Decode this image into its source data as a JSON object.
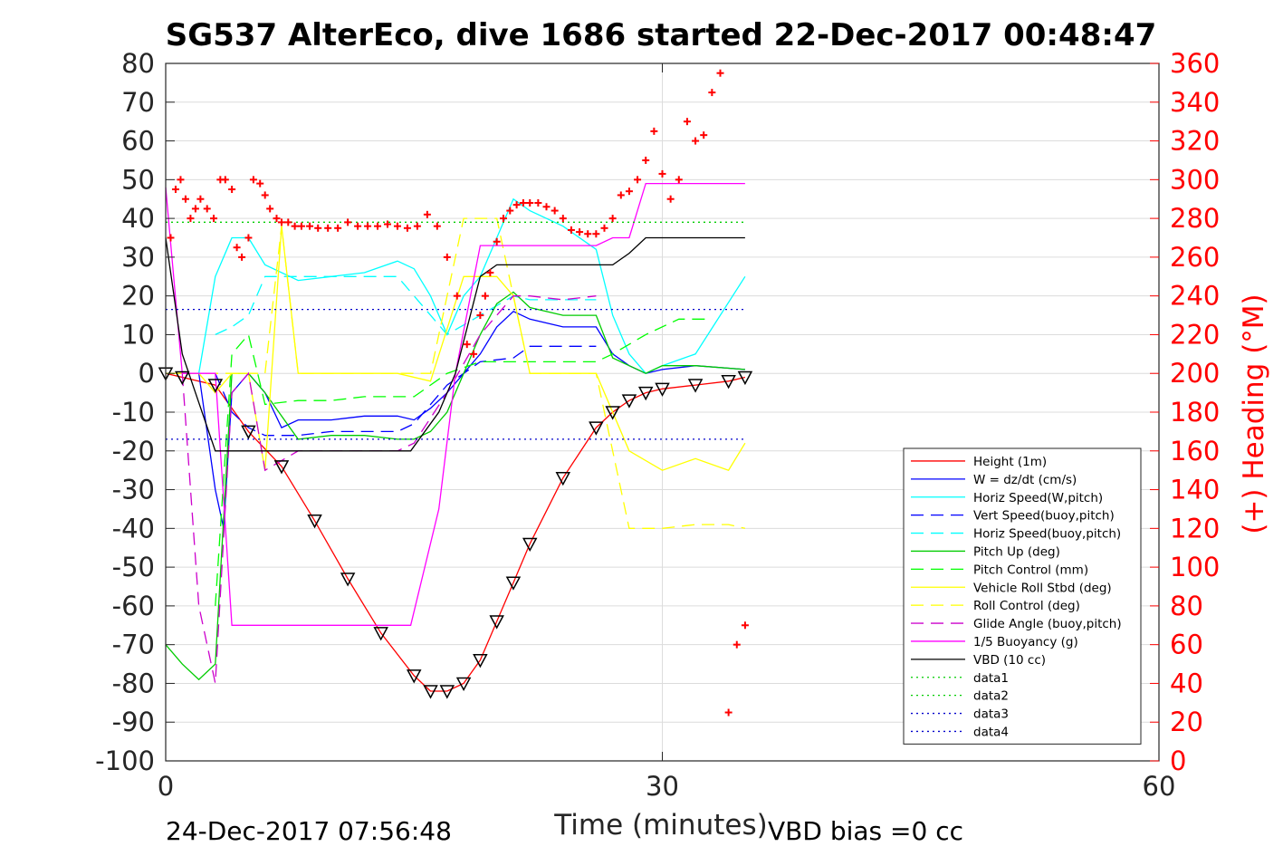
{
  "chart_data": {
    "type": "line",
    "title": "SG537 AlterEco, dive 1686 started 22-Dec-2017 00:48:47",
    "xlabel": "Time (minutes)",
    "ylabel_right": "(+) Heading (°M)",
    "xlim": [
      0,
      60
    ],
    "ylim": [
      -100,
      80
    ],
    "ylim_right": [
      0,
      360
    ],
    "x_ticks": [
      "0",
      "30",
      "60"
    ],
    "y_ticks": [
      "80",
      "70",
      "60",
      "50",
      "40",
      "30",
      "20",
      "10",
      "0",
      "-10",
      "-20",
      "-30",
      "-40",
      "-50",
      "-60",
      "-70",
      "-80",
      "-90",
      "-100"
    ],
    "y_right_ticks": [
      "360",
      "340",
      "320",
      "300",
      "280",
      "260",
      "240",
      "220",
      "200",
      "180",
      "160",
      "140",
      "120",
      "100",
      "80",
      "60",
      "40",
      "20",
      "0"
    ],
    "grid": true,
    "legend_position": "lower-right",
    "footer_left": "24-Dec-2017 07:56:48",
    "footer_right": "VBD bias =0 cc",
    "series": [
      {
        "name": "Height (1m)",
        "color": "#ff0000",
        "style": "solid",
        "x": [
          0,
          1,
          3,
          5,
          7,
          9,
          11,
          13,
          15,
          16,
          17,
          18,
          19,
          20,
          21,
          22,
          24,
          26,
          27,
          28,
          29,
          30,
          32,
          34,
          35
        ],
        "y": [
          0,
          -1,
          -3,
          -15,
          -24,
          -38,
          -53,
          -67,
          -78,
          -82,
          -82,
          -80,
          -74,
          -64,
          -54,
          -44,
          -27,
          -14,
          -10,
          -7,
          -5,
          -4,
          -3,
          -2,
          -1
        ]
      },
      {
        "name": "W = dz/dt (cm/s)",
        "color": "#0000ff",
        "style": "solid",
        "x": [
          0,
          2,
          3,
          3.5,
          4,
          5,
          6,
          7,
          8,
          10,
          12,
          14,
          15,
          16,
          17,
          18,
          19,
          20,
          21,
          22,
          24,
          26,
          27,
          28,
          29,
          30,
          32,
          35
        ],
        "y": [
          0,
          0,
          -30,
          -40,
          -5,
          0,
          -5,
          -14,
          -12,
          -12,
          -11,
          -11,
          -12,
          -9,
          -5,
          0,
          5,
          12,
          16,
          14,
          12,
          12,
          5,
          2,
          0,
          1,
          2,
          1
        ]
      },
      {
        "name": "Horiz Speed(W,pitch)",
        "color": "#00ffff",
        "style": "solid",
        "x": [
          2,
          3,
          4,
          5,
          6,
          8,
          10,
          12,
          14,
          15,
          16,
          17,
          18,
          19,
          20,
          21,
          22,
          24,
          26,
          27,
          28,
          29,
          30,
          32,
          35
        ],
        "y": [
          0,
          25,
          35,
          35,
          28,
          24,
          25,
          26,
          29,
          27,
          20,
          10,
          20,
          25,
          35,
          45,
          42,
          38,
          32,
          15,
          5,
          0,
          2,
          5,
          25
        ]
      },
      {
        "name": "Vert Speed(buoy,pitch)",
        "color": "#0000ff",
        "style": "dashed",
        "x": [
          3,
          4,
          5,
          6,
          8,
          10,
          12,
          14,
          15,
          17,
          19,
          21,
          22,
          24,
          26
        ],
        "y": [
          0,
          -10,
          -14,
          -16,
          -16,
          -15,
          -15,
          -15,
          -13,
          -3,
          3,
          4,
          7,
          7,
          7
        ]
      },
      {
        "name": "Horiz Speed(buoy,pitch)",
        "color": "#00ffff",
        "style": "dashed",
        "x": [
          3,
          4,
          5,
          6,
          8,
          10,
          12,
          14,
          15,
          17,
          19,
          21,
          22,
          24,
          26
        ],
        "y": [
          10,
          12,
          15,
          25,
          25,
          25,
          25,
          25,
          20,
          10,
          15,
          20,
          19,
          19,
          19
        ]
      },
      {
        "name": "Pitch Up (deg)",
        "color": "#00cc00",
        "style": "solid",
        "x": [
          0,
          1,
          2,
          3,
          4,
          5,
          6,
          8,
          10,
          12,
          14,
          15,
          16,
          17,
          18,
          19,
          20,
          21,
          22,
          24,
          26,
          27,
          28,
          29,
          30,
          32,
          35
        ],
        "y": [
          -70,
          -75,
          -79,
          -75,
          0,
          0,
          -5,
          -17,
          -16,
          -16,
          -17,
          -17,
          -15,
          -10,
          0,
          10,
          18,
          21,
          17,
          15,
          15,
          4,
          2,
          0,
          2,
          2,
          1
        ]
      },
      {
        "name": "Pitch Control (mm)",
        "color": "#00ff00",
        "style": "dashed",
        "x": [
          3,
          4,
          5,
          6,
          8,
          10,
          12,
          14,
          15,
          17,
          19,
          21,
          22,
          24,
          26,
          27,
          29,
          31,
          33
        ],
        "y": [
          -60,
          5,
          10,
          -8,
          -7,
          -7,
          -6,
          -6,
          -6,
          0,
          3,
          3,
          3,
          3,
          3,
          5,
          10,
          14,
          14
        ]
      },
      {
        "name": "Vehicle Roll Stbd (deg)",
        "color": "#ffff00",
        "style": "solid",
        "x": [
          0,
          2,
          3,
          4,
          5,
          6,
          7,
          8,
          10,
          12,
          14,
          16,
          18,
          20,
          21,
          22,
          24,
          26,
          28,
          30,
          32,
          34,
          35
        ],
        "y": [
          0,
          0,
          -5,
          0,
          0,
          -25,
          38,
          0,
          0,
          0,
          0,
          -2,
          25,
          25,
          20,
          0,
          0,
          0,
          -20,
          -25,
          -22,
          -25,
          -18
        ]
      },
      {
        "name": "Roll Control (deg)",
        "color": "#ffff00",
        "style": "dashed",
        "x": [
          0,
          2,
          3,
          4,
          5,
          6,
          7,
          8,
          10,
          12,
          14,
          16,
          18,
          20,
          22,
          24,
          26,
          28,
          30,
          32,
          34,
          35
        ],
        "y": [
          0,
          0,
          0,
          0,
          0,
          0,
          38,
          0,
          0,
          0,
          0,
          0,
          40,
          40,
          0,
          0,
          0,
          -40,
          -40,
          -39,
          -39,
          -40
        ]
      },
      {
        "name": "Glide Angle (buoy,pitch)",
        "color": "#cc00cc",
        "style": "dashed",
        "x": [
          1,
          2,
          3,
          4,
          5,
          6,
          8,
          10,
          12,
          14,
          15,
          17,
          19,
          21,
          22,
          24,
          26
        ],
        "y": [
          0,
          -60,
          -80,
          -5,
          0,
          -25,
          -20,
          -20,
          -20,
          -20,
          -18,
          -5,
          10,
          20,
          20,
          19,
          20
        ]
      },
      {
        "name": "1/5 Buoyancy (g)",
        "color": "#ff00ff",
        "style": "solid",
        "x": [
          0,
          1,
          3,
          4,
          10,
          14.8,
          16.5,
          17.5,
          19,
          20,
          24,
          26,
          27,
          28,
          29,
          30,
          35
        ],
        "y": [
          48,
          0,
          0,
          -65,
          -65,
          -65,
          -35,
          0,
          33,
          33,
          33,
          33,
          35,
          35,
          49,
          49,
          49
        ]
      },
      {
        "name": "VBD (10 cc)",
        "color": "#000000",
        "style": "solid",
        "x": [
          0,
          1,
          3,
          10,
          14.8,
          16.5,
          17.5,
          19,
          20,
          26,
          27,
          28,
          29,
          30,
          35
        ],
        "y": [
          35,
          5,
          -20,
          -20,
          -20,
          -10,
          0,
          25,
          28,
          28,
          28,
          31,
          35,
          35,
          35
        ]
      },
      {
        "name": "data1",
        "color": "#00cc00",
        "style": "dotted",
        "x": [
          0,
          35
        ],
        "y": [
          39,
          39
        ]
      },
      {
        "name": "data2",
        "color": "#00cc00",
        "style": "dotted",
        "x": [
          0,
          35
        ],
        "y": [
          39,
          39
        ]
      },
      {
        "name": "data3",
        "color": "#0000cc",
        "style": "dotted",
        "x": [
          0,
          35
        ],
        "y": [
          16.5,
          16.5
        ]
      },
      {
        "name": "data4",
        "color": "#0000cc",
        "style": "dotted",
        "x": [
          0,
          35
        ],
        "y": [
          -17,
          -17
        ]
      }
    ],
    "heading_series": {
      "name": "(+) Heading",
      "color": "#ff0000",
      "marker": "+",
      "x": [
        0.3,
        0.6,
        0.9,
        1.2,
        1.5,
        1.8,
        2.1,
        2.5,
        2.9,
        3.3,
        3.6,
        4.0,
        4.3,
        4.6,
        5.0,
        5.3,
        5.7,
        6.0,
        6.3,
        6.7,
        7.0,
        7.4,
        7.8,
        8.2,
        8.7,
        9.2,
        9.8,
        10.4,
        11.0,
        11.6,
        12.2,
        12.8,
        13.4,
        14.0,
        14.6,
        15.2,
        15.8,
        16.4,
        17.0,
        17.6,
        18.2,
        18.6,
        19.0,
        19.3,
        19.6,
        20.0,
        20.4,
        20.8,
        21.2,
        21.6,
        22.0,
        22.5,
        23.0,
        23.5,
        24.0,
        24.5,
        25.0,
        25.5,
        26.0,
        26.5,
        27.0,
        27.5,
        28.0,
        28.5,
        29.0,
        29.5,
        30.0,
        30.5,
        31.0,
        31.5,
        32.0,
        32.5,
        33.0,
        33.5,
        34.0,
        34.5,
        35.0
      ],
      "y": [
        270,
        295,
        300,
        290,
        280,
        285,
        290,
        285,
        280,
        300,
        300,
        295,
        265,
        260,
        270,
        300,
        298,
        292,
        285,
        280,
        278,
        278,
        276,
        276,
        276,
        275,
        275,
        275,
        278,
        276,
        276,
        276,
        277,
        276,
        275,
        276,
        282,
        276,
        260,
        240,
        215,
        210,
        230,
        240,
        252,
        268,
        280,
        284,
        287,
        288,
        288,
        288,
        286,
        284,
        280,
        274,
        273,
        272,
        272,
        275,
        280,
        292,
        294,
        300,
        310,
        325,
        303,
        290,
        300,
        330,
        320,
        323,
        345,
        355,
        25,
        60,
        70
      ]
    }
  }
}
